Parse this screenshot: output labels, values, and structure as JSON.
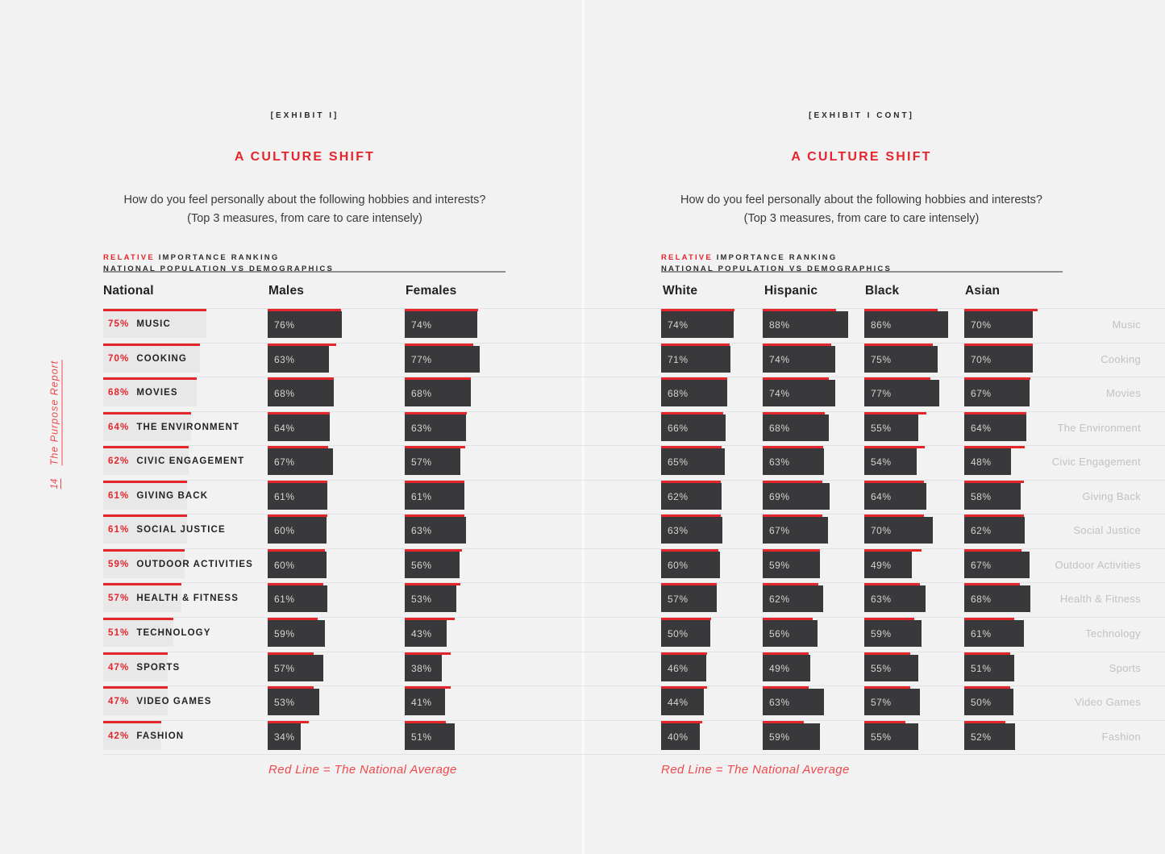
{
  "sidebar": {
    "report_title": "The Purpose Report",
    "page_number": "14"
  },
  "page_left": {
    "exhibit_tag": "[EXHIBIT I]",
    "title": "A CULTURE SHIFT",
    "question_line1": "How do you feel personally about the following hobbies and interests?",
    "question_line2": "(Top 3 measures, from care to care intensely)",
    "ranking_word_red": "RELATIVE",
    "ranking_word_rest": " IMPORTANCE RANKING",
    "ranking_sub": "NATIONAL POPULATION VS DEMOGRAPHICS",
    "columns": [
      "National",
      "Males",
      "Females"
    ],
    "caption": "Red Line = The National Average"
  },
  "page_right": {
    "exhibit_tag": "[EXHIBIT I CONT]",
    "title": "A CULTURE SHIFT",
    "question_line1": "How do you feel personally about the following hobbies and interests?",
    "question_line2": "(Top 3 measures, from care to care intensely)",
    "ranking_word_red": "RELATIVE",
    "ranking_word_rest": " IMPORTANCE RANKING",
    "ranking_sub": "NATIONAL POPULATION VS DEMOGRAPHICS",
    "columns": [
      "White",
      "Hispanic",
      "Black",
      "Asian"
    ],
    "caption": "Red Line = The National Average"
  },
  "chart_data": {
    "type": "bar",
    "title": "A Culture Shift — Relative Importance Ranking, National Population vs Demographics",
    "categories": [
      "Music",
      "Cooking",
      "Movies",
      "The Environment",
      "Civic Engagement",
      "Giving Back",
      "Social Justice",
      "Outdoor Activities",
      "Health & Fitness",
      "Technology",
      "Sports",
      "Video Games",
      "Fashion"
    ],
    "national": [
      75,
      70,
      68,
      64,
      62,
      61,
      61,
      59,
      57,
      51,
      47,
      47,
      42
    ],
    "series": [
      {
        "name": "Males",
        "values": [
          76,
          63,
          68,
          64,
          67,
          61,
          60,
          60,
          61,
          59,
          57,
          53,
          34
        ]
      },
      {
        "name": "Females",
        "values": [
          74,
          77,
          68,
          63,
          57,
          61,
          63,
          56,
          53,
          43,
          38,
          41,
          51
        ]
      },
      {
        "name": "White",
        "values": [
          74,
          71,
          68,
          66,
          65,
          62,
          63,
          60,
          57,
          50,
          46,
          44,
          40
        ]
      },
      {
        "name": "Hispanic",
        "values": [
          88,
          74,
          74,
          68,
          63,
          69,
          67,
          59,
          62,
          56,
          49,
          63,
          59
        ]
      },
      {
        "name": "Black",
        "values": [
          86,
          75,
          77,
          55,
          54,
          64,
          70,
          49,
          63,
          59,
          55,
          57,
          55
        ]
      },
      {
        "name": "Asian",
        "values": [
          70,
          70,
          67,
          64,
          48,
          58,
          62,
          67,
          68,
          61,
          51,
          50,
          52
        ]
      }
    ],
    "annotation": "Red Line = The National Average",
    "value_suffix": "%",
    "layout_hints": {
      "orientation": "horizontal",
      "grid": "row-dividers",
      "xlim": [
        0,
        100
      ]
    },
    "colors": {
      "bar": "#39383a",
      "national_average_line": "#e4252c",
      "national_box": "#e9e8e8",
      "accent_red": "#e4252c",
      "soft_red": "#f0494c",
      "background": "#f2f2f2"
    }
  }
}
